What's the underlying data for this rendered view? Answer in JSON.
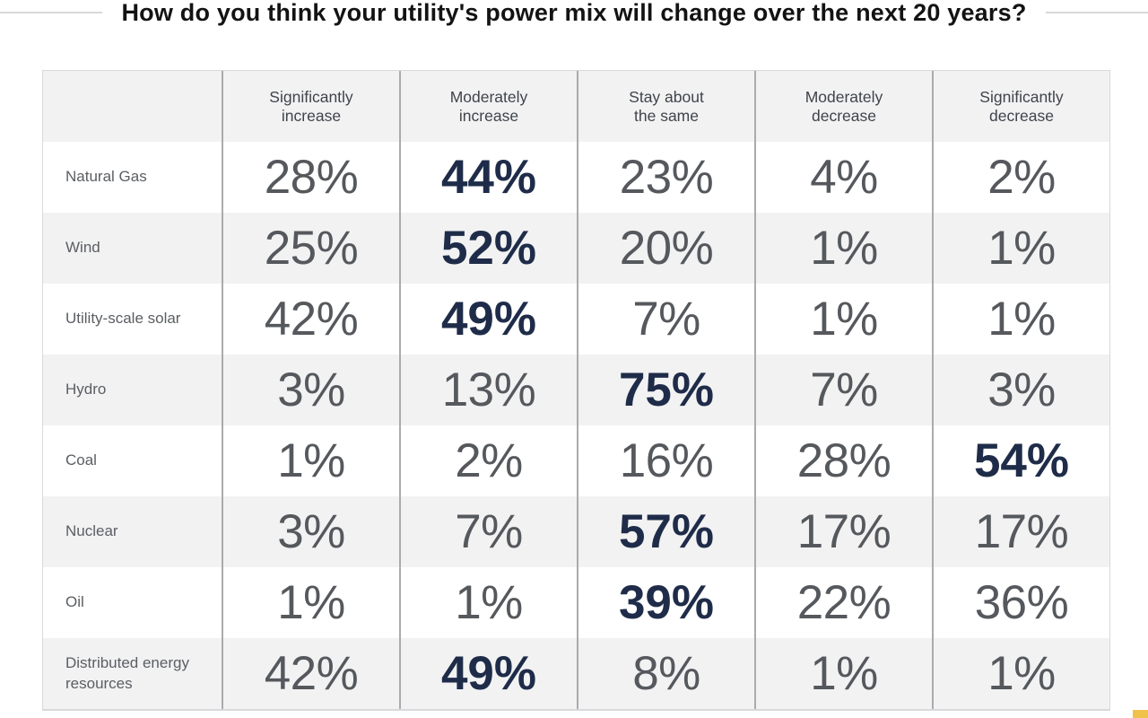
{
  "page": {
    "title": "How do you think your utility's power mix will change over the next 20 years?"
  },
  "colors": {
    "highlight_navy": "#1f2c49",
    "value_gray": "#55585c",
    "stripe_bg": "#f2f2f3",
    "column_divider": "#ababaf",
    "outer_border": "#d9d9dc",
    "title_rule": "#d9d9d9",
    "corner_marker_yellow": "#f0c14b"
  },
  "chart_data": {
    "type": "table",
    "title": "How do you think your utility's power mix will change over the next 20 years?",
    "columns": [
      "Significantly\nincrease",
      "Moderately\nincrease",
      "Stay about\nthe same",
      "Moderately\ndecrease",
      "Significantly\ndecrease"
    ],
    "rows": [
      {
        "label": "Natural Gas",
        "values": [
          "28%",
          "44%",
          "23%",
          "4%",
          "2%"
        ],
        "highlight_index": 1
      },
      {
        "label": "Wind",
        "values": [
          "25%",
          "52%",
          "20%",
          "1%",
          "1%"
        ],
        "highlight_index": 1
      },
      {
        "label": "Utility-scale solar",
        "values": [
          "42%",
          "49%",
          "7%",
          "1%",
          "1%"
        ],
        "highlight_index": 1
      },
      {
        "label": "Hydro",
        "values": [
          "3%",
          "13%",
          "75%",
          "7%",
          "3%"
        ],
        "highlight_index": 2
      },
      {
        "label": "Coal",
        "values": [
          "1%",
          "2%",
          "16%",
          "28%",
          "54%"
        ],
        "highlight_index": 4
      },
      {
        "label": "Nuclear",
        "values": [
          "3%",
          "7%",
          "57%",
          "17%",
          "17%"
        ],
        "highlight_index": 2
      },
      {
        "label": "Oil",
        "values": [
          "1%",
          "1%",
          "39%",
          "22%",
          "36%"
        ],
        "highlight_index": 2
      },
      {
        "label": "Distributed energy resources",
        "values": [
          "42%",
          "49%",
          "8%",
          "1%",
          "1%"
        ],
        "highlight_index": 1
      }
    ]
  }
}
